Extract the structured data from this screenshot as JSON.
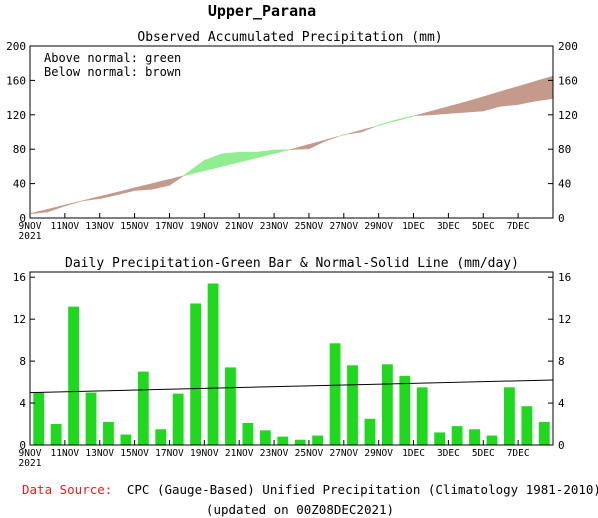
{
  "title": "Upper_Parana",
  "footer": {
    "source_label": "Data Source:",
    "source_text": "CPC (Gauge-Based) Unified Precipitation (Climatology 1981-2010)",
    "updated": "(updated on 00Z08DEC2021)"
  },
  "colors": {
    "above_normal": "#90ee90",
    "below_normal": "#c49a8c",
    "bar": "#1fd81f",
    "normal_line": "#000000",
    "source_label": "#e02020"
  },
  "chart_data": [
    {
      "type": "area",
      "title": "Observed Accumulated Precipitation (mm)",
      "legend": [
        "Above normal: green",
        "Below normal: brown"
      ],
      "legend_placement": "top-left",
      "x_ticks": [
        "9NOV",
        "11NOV",
        "13NOV",
        "15NOV",
        "17NOV",
        "19NOV",
        "21NOV",
        "23NOV",
        "25NOV",
        "27NOV",
        "29NOV",
        "1DEC",
        "3DEC",
        "5DEC",
        "7DEC"
      ],
      "x_year": "2021",
      "ylim": [
        0,
        200
      ],
      "y_ticks": [
        0,
        40,
        80,
        120,
        160,
        200
      ],
      "x_days": [
        0,
        1,
        2,
        3,
        4,
        5,
        6,
        7,
        8,
        9,
        10,
        11,
        12,
        13,
        14,
        15,
        16,
        17,
        18,
        19,
        20,
        21,
        22,
        23,
        24,
        25,
        26,
        27,
        28,
        29,
        30
      ],
      "observed": [
        5,
        7,
        14,
        20,
        22.5,
        27,
        32,
        33.5,
        38,
        52,
        67,
        74.5,
        76.5,
        76.5,
        79,
        79.5,
        80.5,
        90,
        97,
        100,
        108,
        114,
        119,
        120,
        121.5,
        123,
        124.5,
        130,
        132,
        136,
        139
      ],
      "normal": [
        5,
        10,
        15,
        20,
        25,
        30,
        35,
        40,
        45,
        50,
        55,
        60,
        65,
        70,
        75,
        80,
        85.5,
        91,
        96.5,
        102,
        107.5,
        113,
        118.5,
        124,
        129.5,
        135,
        141,
        147,
        153,
        159,
        165
      ]
    },
    {
      "type": "bar",
      "title": "Daily Precipitation-Green Bar & Normal-Solid Line (mm/day)",
      "x_ticks": [
        "9NOV",
        "11NOV",
        "13NOV",
        "15NOV",
        "17NOV",
        "19NOV",
        "21NOV",
        "23NOV",
        "25NOV",
        "27NOV",
        "29NOV",
        "1DEC",
        "3DEC",
        "5DEC",
        "7DEC"
      ],
      "x_year": "2021",
      "ylim": [
        0,
        16.5
      ],
      "y_ticks": [
        0,
        4,
        8,
        12,
        16
      ],
      "values": [
        5,
        2,
        13.2,
        5,
        2.2,
        1,
        7,
        1.5,
        4.9,
        13.5,
        15.4,
        7.4,
        2.1,
        1.4,
        0.8,
        0.5,
        0.9,
        9.7,
        7.6,
        2.5,
        7.7,
        6.6,
        5.5,
        1.2,
        1.8,
        1.5,
        0.9,
        5.5,
        3.7,
        2.2
      ],
      "normal_line": [
        5,
        6.2
      ]
    }
  ]
}
